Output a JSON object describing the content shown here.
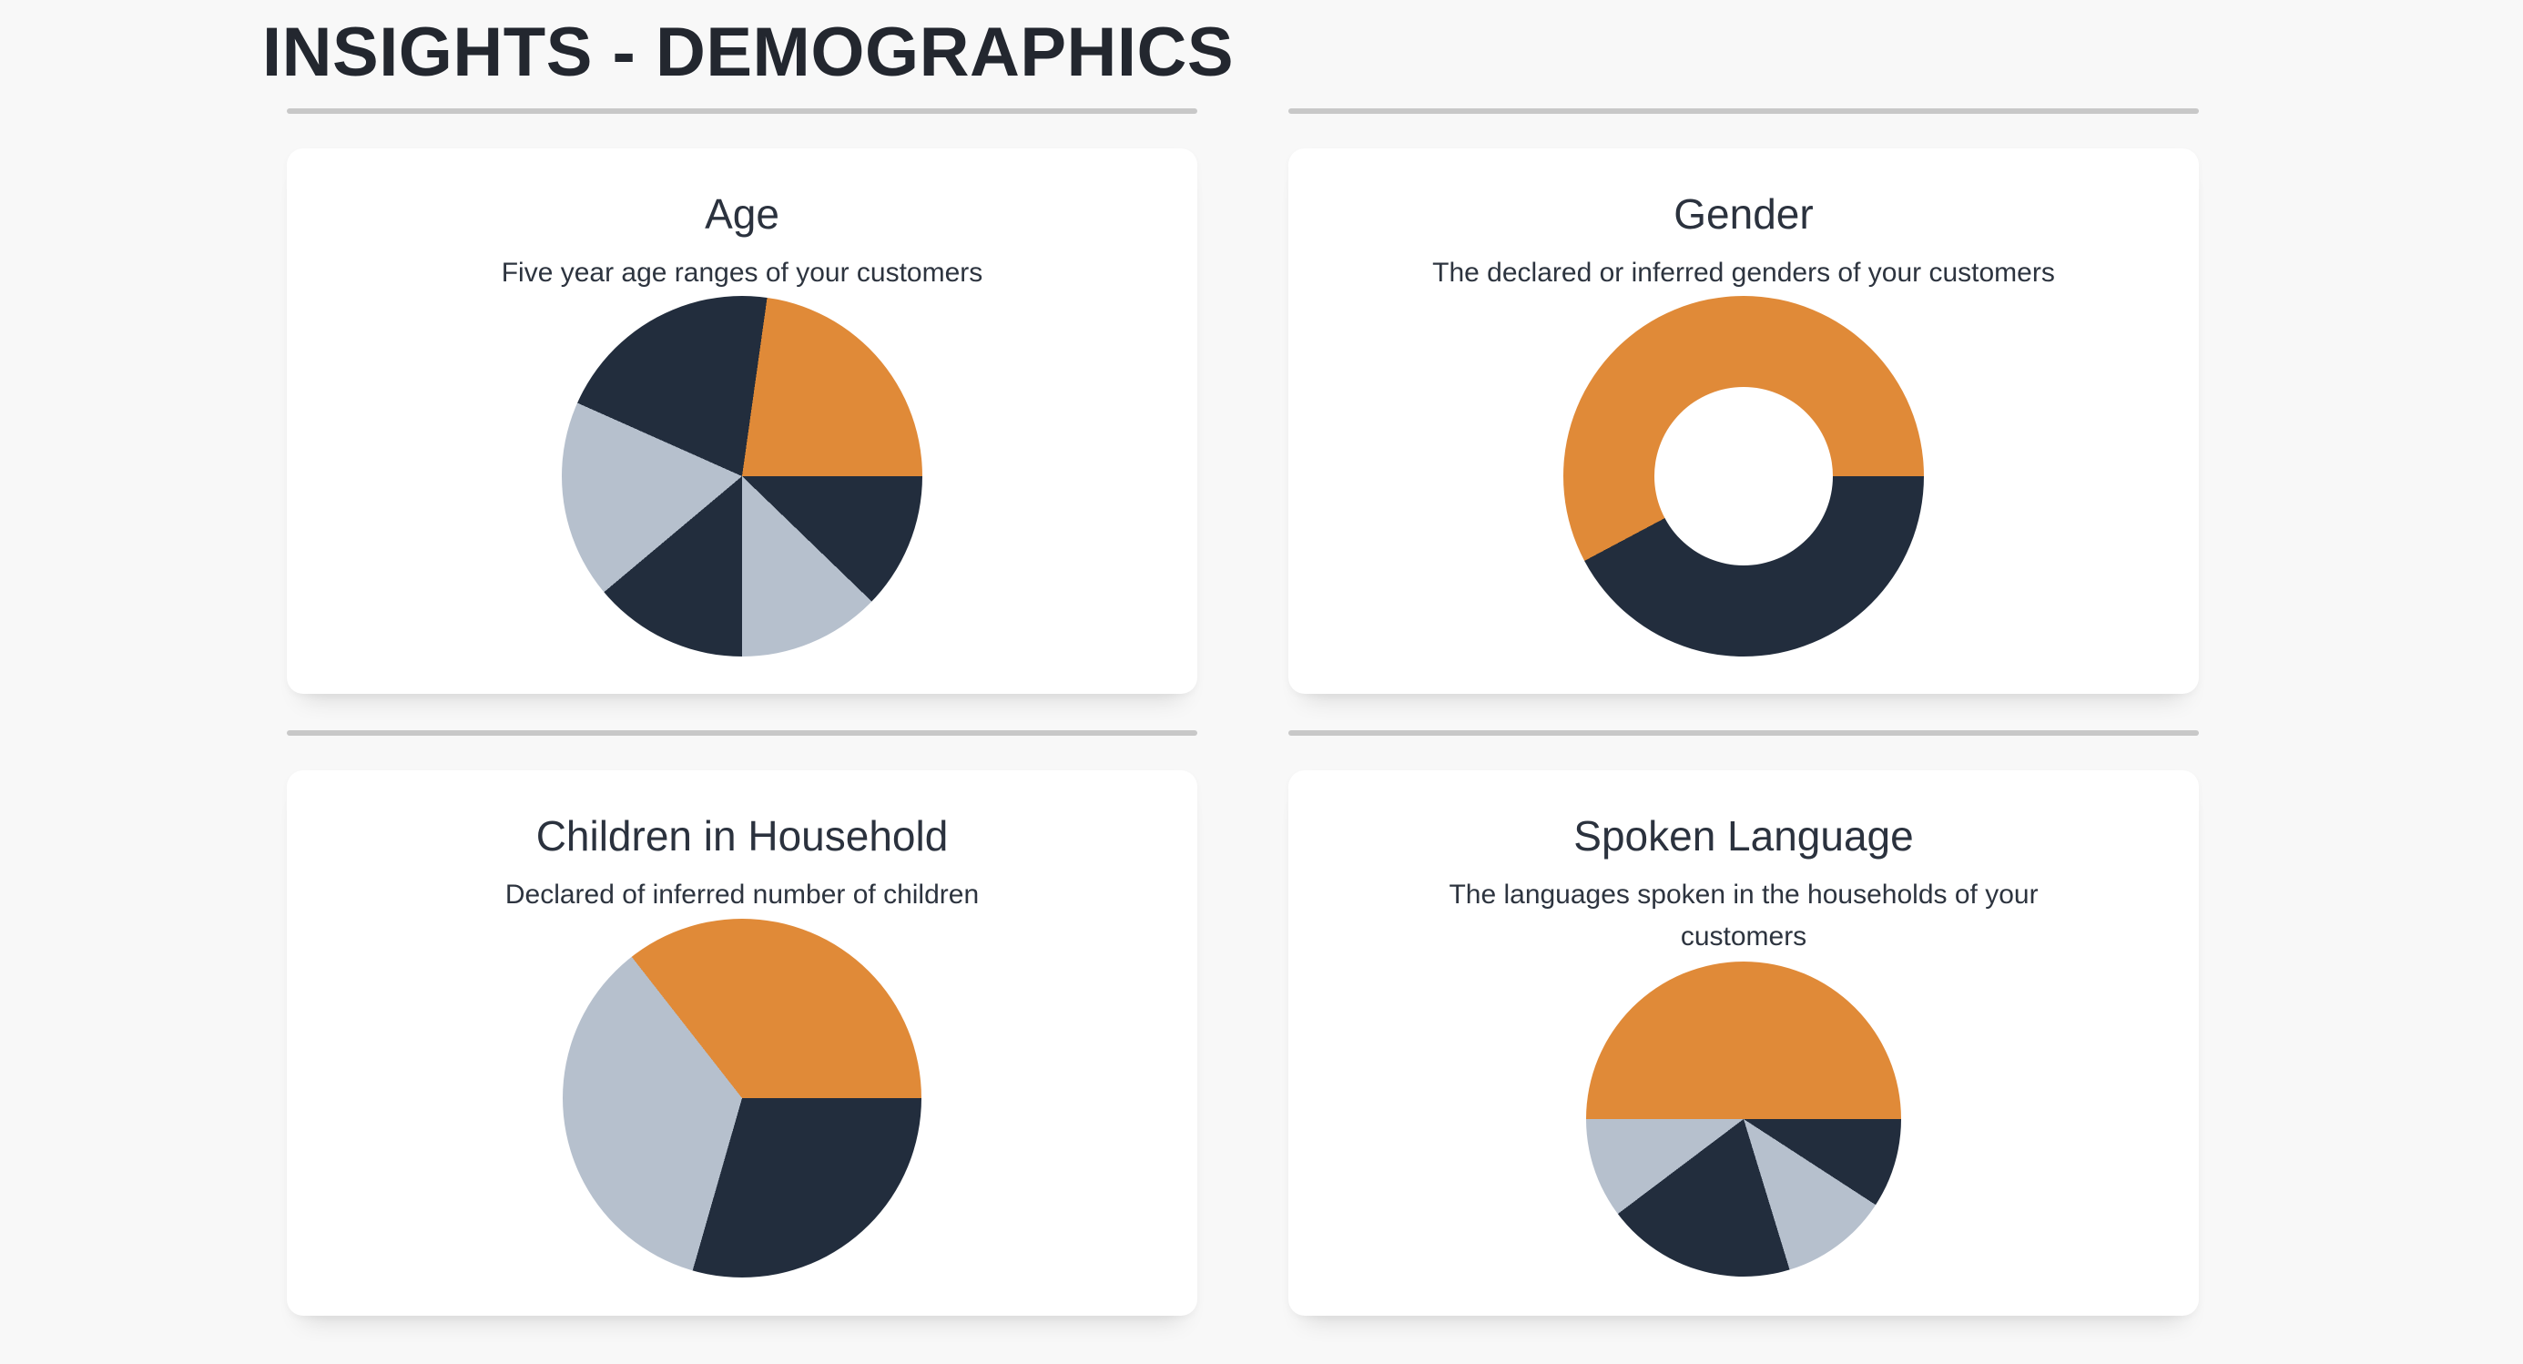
{
  "page": {
    "title": "INSIGHTS - DEMOGRAPHICS",
    "background_color": "#f8f8f8",
    "divider_color": "#c8c8c8",
    "card_background": "#ffffff"
  },
  "palette": {
    "orange": "#e08a38",
    "dark_navy": "#222d3d",
    "light_gray_blue": "#b6c0cd",
    "title_text": "#23272f",
    "card_text": "#2b323e"
  },
  "cards": {
    "age": {
      "title": "Age",
      "subtitle": "Five year age ranges of your customers"
    },
    "gender": {
      "title": "Gender",
      "subtitle": "The declared or inferred genders of your customers"
    },
    "children": {
      "title": "Children in Household",
      "subtitle": "Declared of inferred number of children"
    },
    "spoken": {
      "title": "Spoken Language",
      "subtitle": "The languages spoken in the households of your customers"
    }
  },
  "chart_data": [
    {
      "id": "age",
      "type": "pie",
      "title": "Age",
      "subtitle": "Five year age ranges of your customers",
      "legend": false,
      "labels": "none",
      "start_angle_deg": 8,
      "segments": [
        {
          "color": "orange",
          "hex": "#e08a38",
          "sweep_deg": 82,
          "percent": 22.8
        },
        {
          "color": "dark_navy",
          "hex": "#222d3d",
          "sweep_deg": 44,
          "percent": 12.2
        },
        {
          "color": "light_gray_blue",
          "hex": "#b6c0cd",
          "sweep_deg": 46,
          "percent": 12.8
        },
        {
          "color": "dark_navy",
          "hex": "#222d3d",
          "sweep_deg": 50,
          "percent": 13.9
        },
        {
          "color": "light_gray_blue",
          "hex": "#b6c0cd",
          "sweep_deg": 64,
          "percent": 17.8
        },
        {
          "color": "dark_navy",
          "hex": "#222d3d",
          "sweep_deg": 74,
          "percent": 20.6
        }
      ]
    },
    {
      "id": "gender",
      "type": "donut",
      "title": "Gender",
      "subtitle": "The declared or inferred genders of your customers",
      "legend": false,
      "labels": "none",
      "inner_radius_ratio": 0.495,
      "start_angle_deg": 90,
      "segments": [
        {
          "color": "dark_navy",
          "hex": "#222d3d",
          "sweep_deg": 152,
          "percent": 42.2
        },
        {
          "color": "orange",
          "hex": "#e08a38",
          "sweep_deg": 208,
          "percent": 57.8
        }
      ]
    },
    {
      "id": "children",
      "type": "pie",
      "title": "Children in Household",
      "subtitle": "Declared of inferred number of children",
      "legend": false,
      "labels": "none",
      "start_angle_deg": 90,
      "segments": [
        {
          "color": "dark_navy",
          "hex": "#222d3d",
          "sweep_deg": 106,
          "percent": 29.4
        },
        {
          "color": "light_gray_blue",
          "hex": "#b6c0cd",
          "sweep_deg": 126,
          "percent": 35.0
        },
        {
          "color": "orange",
          "hex": "#e08a38",
          "sweep_deg": 128,
          "percent": 35.6
        }
      ]
    },
    {
      "id": "spoken",
      "type": "pie",
      "title": "Spoken Language",
      "subtitle": "The languages spoken in the households of your customers",
      "legend": false,
      "labels": "none",
      "start_angle_deg": 90,
      "segments": [
        {
          "color": "dark_navy",
          "hex": "#222d3d",
          "sweep_deg": 33,
          "percent": 9.2
        },
        {
          "color": "light_gray_blue",
          "hex": "#b6c0cd",
          "sweep_deg": 40,
          "percent": 11.1
        },
        {
          "color": "dark_navy",
          "hex": "#222d3d",
          "sweep_deg": 70,
          "percent": 19.4
        },
        {
          "color": "light_gray_blue",
          "hex": "#b6c0cd",
          "sweep_deg": 37,
          "percent": 10.3
        },
        {
          "color": "orange",
          "hex": "#e08a38",
          "sweep_deg": 180,
          "percent": 50.0
        }
      ]
    }
  ]
}
